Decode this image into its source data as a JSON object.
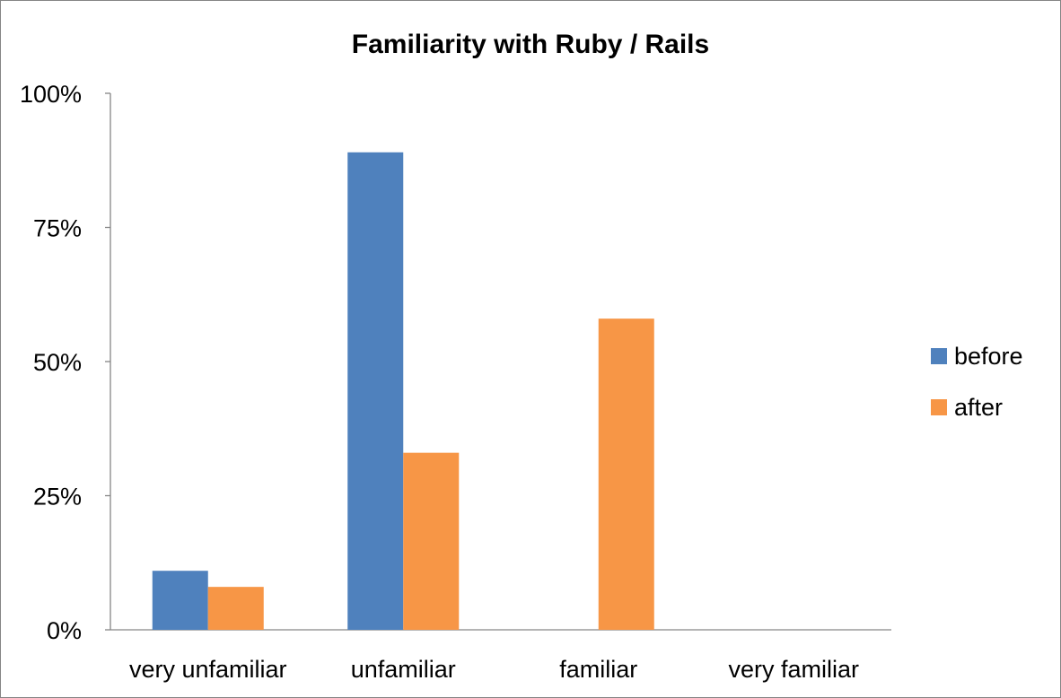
{
  "chart_data": {
    "type": "bar",
    "title": "Familiarity with Ruby / Rails",
    "xlabel": "",
    "ylabel": "",
    "categories": [
      "very unfamiliar",
      "unfamiliar",
      "familiar",
      "very familiar"
    ],
    "series": [
      {
        "name": "before",
        "color": "#4F81BD",
        "values": [
          11,
          89,
          0,
          0
        ]
      },
      {
        "name": "after",
        "color": "#F79646",
        "values": [
          8,
          33,
          58,
          0
        ]
      }
    ],
    "ylim": [
      0,
      100
    ],
    "yticks": [
      0,
      25,
      50,
      75,
      100
    ],
    "ytick_labels": [
      "0%",
      "25%",
      "50%",
      "75%",
      "100%"
    ],
    "grid": false,
    "legend_position": "right"
  }
}
